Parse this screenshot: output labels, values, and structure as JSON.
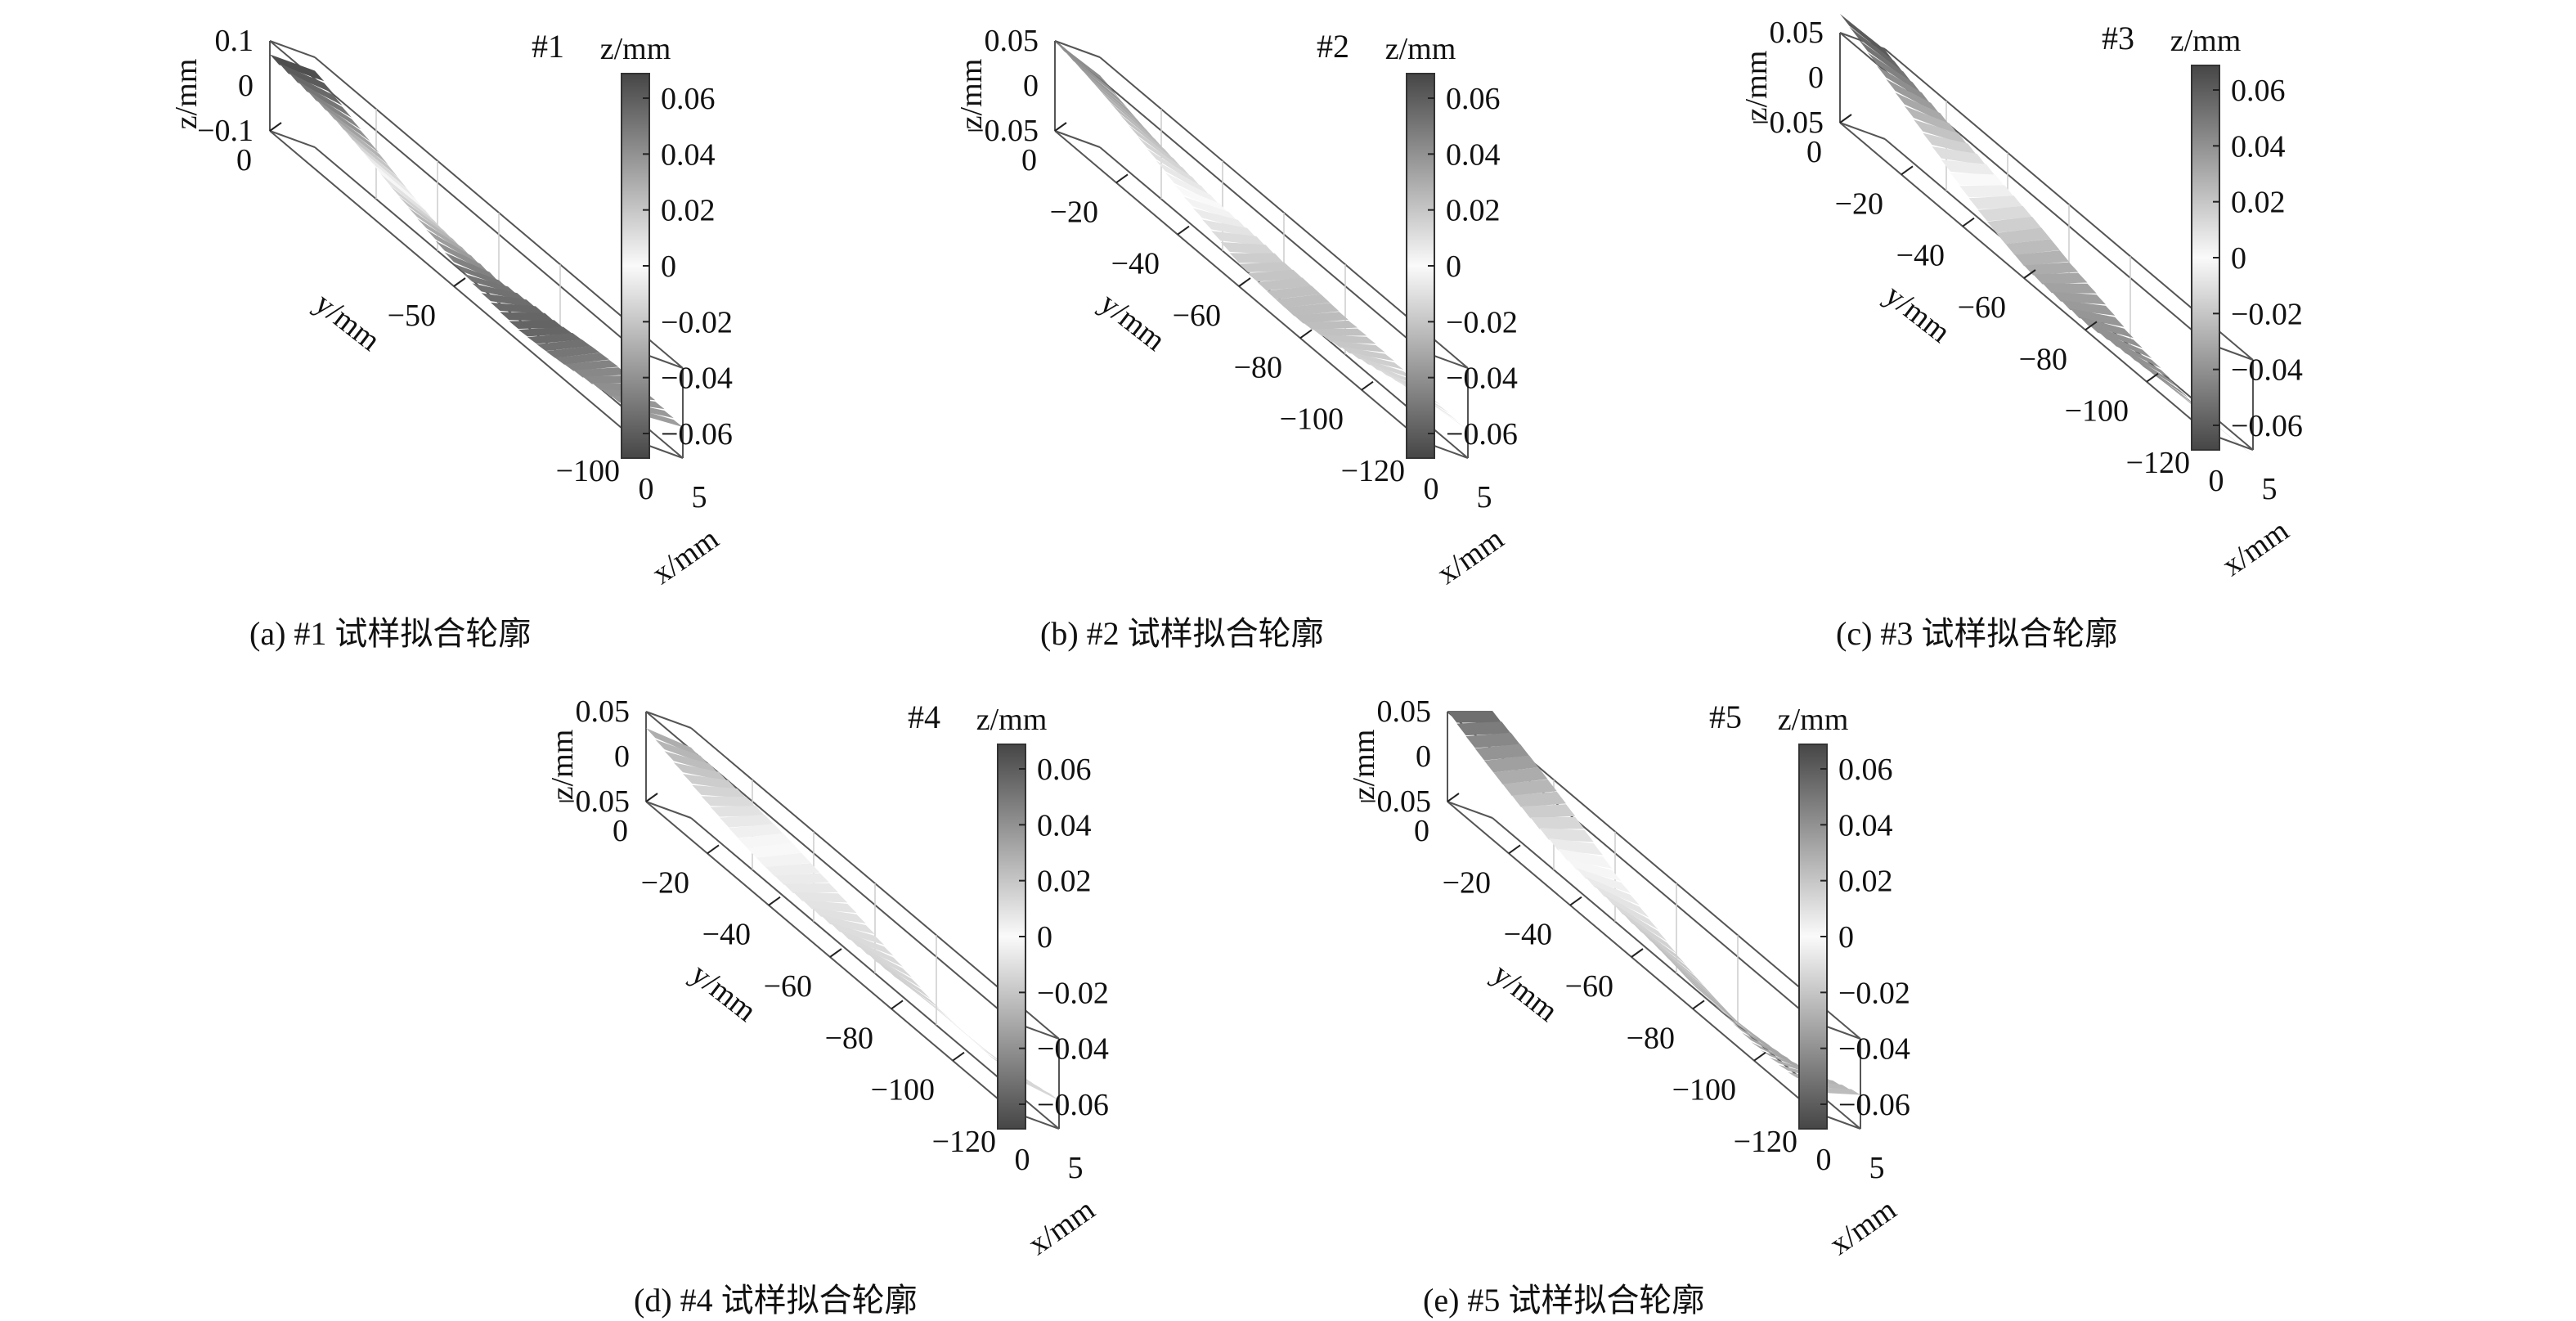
{
  "figure": {
    "panels": [
      {
        "id": "p1",
        "caption": "(a)  #1 试样拟合轮廓"
      },
      {
        "id": "p2",
        "caption": "(b)  #2 试样拟合轮廓"
      },
      {
        "id": "p3",
        "caption": "(c)  #3 试样拟合轮廓"
      },
      {
        "id": "p4",
        "caption": "(d)  #4 试样拟合轮廓"
      },
      {
        "id": "p5",
        "caption": "(e)  #5 试样拟合轮廓"
      }
    ]
  },
  "chart_data": [
    {
      "type": "surface",
      "title": "#1",
      "xlabel": "x/mm",
      "ylabel": "y/mm",
      "zlabel": "z/mm",
      "x_ticks": [
        "0",
        "5"
      ],
      "y_ticks": [
        "0",
        "−50",
        "−100"
      ],
      "z_ticks": [
        "0.1",
        "0",
        "−0.1"
      ],
      "xlim": [
        0,
        5
      ],
      "ylim": [
        -120,
        0
      ],
      "zlim": [
        -0.1,
        0.1
      ],
      "colorbar": {
        "label": "z/mm",
        "ticks": [
          "0.06",
          "0.04",
          "0.02",
          "0",
          "−0.02",
          "−0.04",
          "−0.06"
        ],
        "range": [
          -0.07,
          0.07
        ],
        "colormap": "grayscale"
      },
      "profile": {
        "y": [
          0,
          -20,
          -40,
          -60,
          -80,
          -100,
          -120
        ],
        "z": [
          0.07,
          0.03,
          -0.02,
          -0.05,
          -0.055,
          -0.04,
          -0.035
        ]
      }
    },
    {
      "type": "surface",
      "title": "#2",
      "xlabel": "x/mm",
      "ylabel": "y/mm",
      "zlabel": "z/mm",
      "x_ticks": [
        "0",
        "5"
      ],
      "y_ticks": [
        "0",
        "−20",
        "−40",
        "−60",
        "−80",
        "−100",
        "−120"
      ],
      "z_ticks": [
        "0.05",
        "0",
        "−0.05"
      ],
      "xlim": [
        0,
        5
      ],
      "ylim": [
        -120,
        0
      ],
      "zlim": [
        -0.05,
        0.05
      ],
      "colorbar": {
        "label": "z/mm",
        "ticks": [
          "0.06",
          "0.04",
          "0.02",
          "0",
          "−0.02",
          "−0.04",
          "−0.06"
        ],
        "range": [
          -0.07,
          0.07
        ],
        "colormap": "grayscale"
      },
      "profile": {
        "y": [
          0,
          -20,
          -40,
          -60,
          -80,
          -100,
          -120
        ],
        "z": [
          0.04,
          0.02,
          0.0,
          -0.015,
          -0.02,
          -0.015,
          -0.01
        ]
      }
    },
    {
      "type": "surface",
      "title": "#3",
      "xlabel": "x/mm",
      "ylabel": "y/mm",
      "zlabel": "z/mm",
      "x_ticks": [
        "0",
        "5"
      ],
      "y_ticks": [
        "0",
        "−20",
        "−40",
        "−60",
        "−80",
        "−100",
        "−120"
      ],
      "z_ticks": [
        "0.05",
        "0",
        "−0.05"
      ],
      "xlim": [
        0,
        5
      ],
      "ylim": [
        -120,
        0
      ],
      "zlim": [
        -0.05,
        0.05
      ],
      "colorbar": {
        "label": "z/mm",
        "ticks": [
          "0.06",
          "0.04",
          "0.02",
          "0",
          "−0.02",
          "−0.04",
          "−0.06"
        ],
        "range": [
          -0.07,
          0.07
        ],
        "colormap": "grayscale"
      },
      "profile": {
        "y": [
          0,
          -20,
          -40,
          -60,
          -80,
          -100,
          -120
        ],
        "z": [
          0.06,
          0.03,
          0.0,
          -0.025,
          -0.04,
          -0.045,
          -0.045
        ]
      }
    },
    {
      "type": "surface",
      "title": "#4",
      "xlabel": "x/mm",
      "ylabel": "y/mm",
      "zlabel": "z/mm",
      "x_ticks": [
        "0",
        "5"
      ],
      "y_ticks": [
        "0",
        "−20",
        "−40",
        "−60",
        "−80",
        "−100",
        "−120"
      ],
      "z_ticks": [
        "0.05",
        "0",
        "−0.05"
      ],
      "xlim": [
        0,
        5
      ],
      "ylim": [
        -120,
        0
      ],
      "zlim": [
        -0.05,
        0.05
      ],
      "colorbar": {
        "label": "z/mm",
        "ticks": [
          "0.06",
          "0.04",
          "0.02",
          "0",
          "−0.02",
          "−0.04",
          "−0.06"
        ],
        "range": [
          -0.07,
          0.07
        ],
        "colormap": "grayscale"
      },
      "profile": {
        "y": [
          0,
          -20,
          -40,
          -60,
          -80,
          -100,
          -120
        ],
        "z": [
          0.03,
          0.015,
          0.0,
          -0.01,
          -0.02,
          -0.02,
          -0.015
        ]
      }
    },
    {
      "type": "surface",
      "title": "#5",
      "xlabel": "x/mm",
      "ylabel": "y/mm",
      "zlabel": "z/mm",
      "x_ticks": [
        "0",
        "5"
      ],
      "y_ticks": [
        "0",
        "−20",
        "−40",
        "−60",
        "−80",
        "−100",
        "−120"
      ],
      "z_ticks": [
        "0.05",
        "0",
        "−0.05"
      ],
      "xlim": [
        0,
        5
      ],
      "ylim": [
        -120,
        0
      ],
      "zlim": [
        -0.05,
        0.05
      ],
      "colorbar": {
        "label": "z/mm",
        "ticks": [
          "0.06",
          "0.04",
          "0.02",
          "0",
          "−0.02",
          "−0.04",
          "−0.06"
        ],
        "range": [
          -0.07,
          0.07
        ],
        "colormap": "grayscale"
      },
      "profile": {
        "y": [
          0,
          -20,
          -40,
          -60,
          -80,
          -100,
          -120
        ],
        "z": [
          0.06,
          0.03,
          0.0,
          -0.02,
          -0.035,
          -0.035,
          -0.02
        ]
      }
    }
  ]
}
